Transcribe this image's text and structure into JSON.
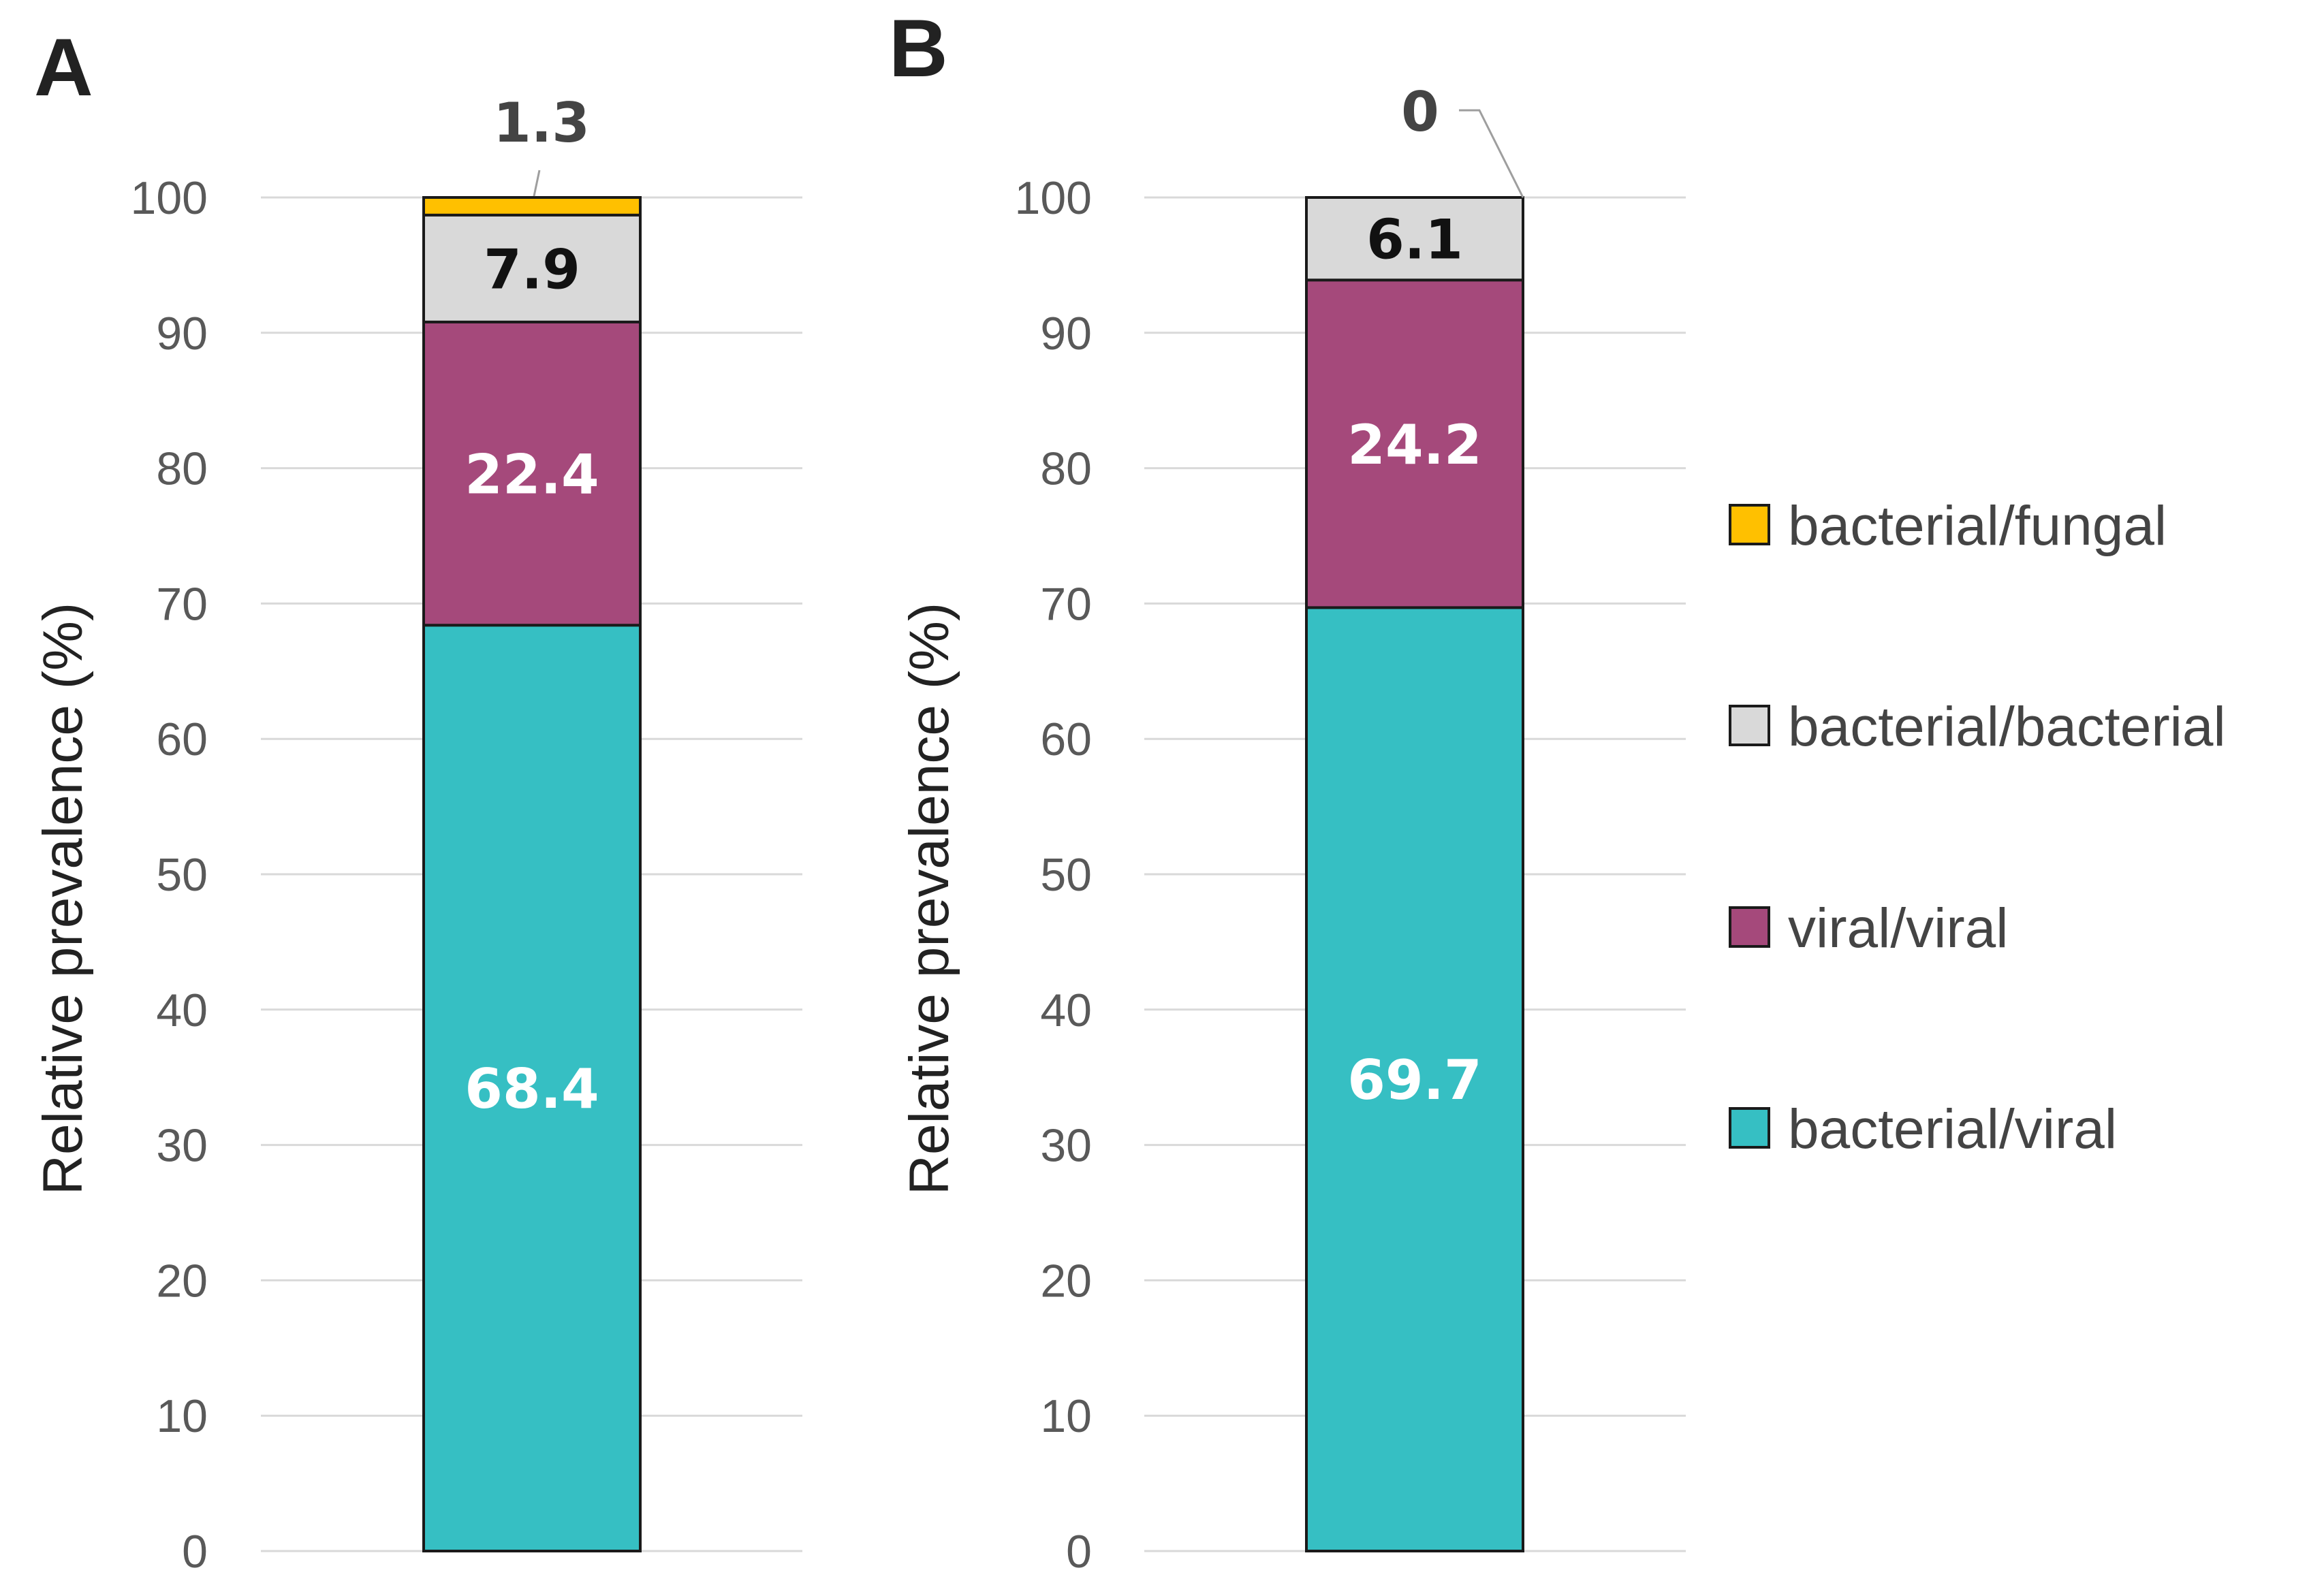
{
  "chart_data": [
    {
      "type": "bar",
      "panel": "A",
      "ylabel": "Relative prevalence (%)",
      "ylim": [
        0,
        100
      ],
      "yticks": [
        0,
        10,
        20,
        30,
        40,
        50,
        60,
        70,
        80,
        90,
        100
      ],
      "grid": true,
      "stacked": true,
      "series": [
        {
          "name": "bacterial/viral",
          "values": [
            68.4
          ],
          "label": "68.4"
        },
        {
          "name": "viral/viral",
          "values": [
            22.4
          ],
          "label": "22.4"
        },
        {
          "name": "bacterial/bacterial",
          "values": [
            7.9
          ],
          "label": "7.9"
        },
        {
          "name": "bacterial/fungal",
          "values": [
            1.3
          ],
          "label": "1.3"
        }
      ]
    },
    {
      "type": "bar",
      "panel": "B",
      "ylabel": "Relative prevalence (%)",
      "ylim": [
        0,
        100
      ],
      "yticks": [
        0,
        10,
        20,
        30,
        40,
        50,
        60,
        70,
        80,
        90,
        100
      ],
      "grid": true,
      "stacked": true,
      "series": [
        {
          "name": "bacterial/viral",
          "values": [
            69.7
          ],
          "label": "69.7"
        },
        {
          "name": "viral/viral",
          "values": [
            24.2
          ],
          "label": "24.2"
        },
        {
          "name": "bacterial/bacterial",
          "values": [
            6.1
          ],
          "label": "6.1"
        },
        {
          "name": "bacterial/fungal",
          "values": [
            0
          ],
          "label": "0"
        }
      ]
    }
  ],
  "legend": {
    "placement": "right",
    "items": [
      {
        "label": "bacterial/fungal",
        "color": "#ffc000"
      },
      {
        "label": "bacterial/bacterial",
        "color": "#d9d9d9"
      },
      {
        "label": "viral/viral",
        "color": "#a5497b"
      },
      {
        "label": "bacterial/viral",
        "color": "#36bfc3"
      }
    ]
  },
  "colors": {
    "bacterial/viral": "#36bfc3",
    "viral/viral": "#a5497b",
    "bacterial/bacterial": "#d9d9d9",
    "bacterial/fungal": "#ffc000"
  },
  "label_colors": {
    "bacterial/viral": "#ffffff",
    "viral/viral": "#ffffff",
    "bacterial/bacterial": "#111111",
    "bacterial/fungal": "#444444"
  }
}
